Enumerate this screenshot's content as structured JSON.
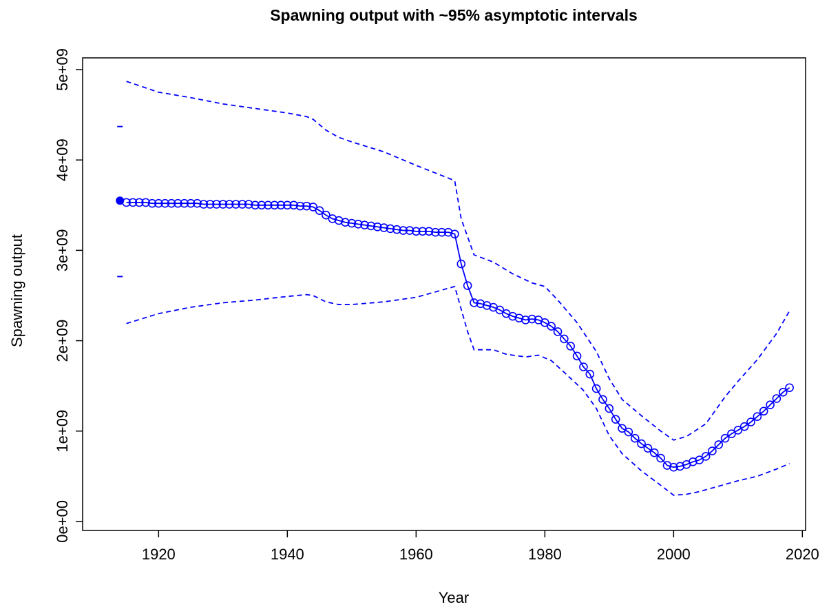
{
  "chart_data": {
    "type": "line",
    "title": "Spawning output with ~95% asymptotic intervals",
    "x_label": "Year",
    "y_label": "Spawning output",
    "xlim": [
      1908.2,
      2020.5
    ],
    "ylim": [
      -100000000.0,
      5130000000.0
    ],
    "xticks": [
      1920,
      1940,
      1960,
      1980,
      2000,
      2020
    ],
    "yticks": [
      {
        "value": 0,
        "label": "0e+00"
      },
      {
        "value": 1000000000.0,
        "label": "1e+09"
      },
      {
        "value": 2000000000.0,
        "label": "2e+09"
      },
      {
        "value": 3000000000.0,
        "label": "3e+09"
      },
      {
        "value": 4000000000.0,
        "label": "4e+09"
      },
      {
        "value": 5000000000.0,
        "label": "5e+09"
      }
    ],
    "series": [
      {
        "color": "#0000ff",
        "marker": "circle",
        "dashed": false,
        "x": [
          1915,
          1916,
          1917,
          1918,
          1919,
          1920,
          1921,
          1922,
          1923,
          1924,
          1925,
          1926,
          1927,
          1928,
          1929,
          1930,
          1931,
          1932,
          1933,
          1934,
          1935,
          1936,
          1937,
          1938,
          1939,
          1940,
          1941,
          1942,
          1943,
          1944,
          1945,
          1946,
          1947,
          1948,
          1949,
          1950,
          1951,
          1952,
          1953,
          1954,
          1955,
          1956,
          1957,
          1958,
          1959,
          1960,
          1961,
          1962,
          1963,
          1964,
          1965,
          1966,
          1967,
          1968,
          1969,
          1970,
          1971,
          1972,
          1973,
          1974,
          1975,
          1976,
          1977,
          1978,
          1979,
          1980,
          1981,
          1982,
          1983,
          1984,
          1985,
          1986,
          1987,
          1988,
          1989,
          1990,
          1991,
          1992,
          1993,
          1994,
          1995,
          1996,
          1997,
          1998,
          1999,
          2000,
          2001,
          2002,
          2003,
          2004,
          2005,
          2006,
          2007,
          2008,
          2009,
          2010,
          2011,
          2012,
          2013,
          2014,
          2015,
          2016,
          2017,
          2018
        ],
        "values": [
          3530000000.0,
          3530000000.0,
          3530000000.0,
          3530000000.0,
          3520000000.0,
          3520000000.0,
          3520000000.0,
          3520000000.0,
          3520000000.0,
          3520000000.0,
          3520000000.0,
          3520000000.0,
          3510000000.0,
          3510000000.0,
          3510000000.0,
          3510000000.0,
          3510000000.0,
          3510000000.0,
          3510000000.0,
          3510000000.0,
          3500000000.0,
          3500000000.0,
          3500000000.0,
          3500000000.0,
          3500000000.0,
          3500000000.0,
          3500000000.0,
          3490000000.0,
          3490000000.0,
          3480000000.0,
          3440000000.0,
          3390000000.0,
          3350000000.0,
          3330000000.0,
          3310000000.0,
          3300000000.0,
          3290000000.0,
          3280000000.0,
          3270000000.0,
          3260000000.0,
          3250000000.0,
          3240000000.0,
          3230000000.0,
          3220000000.0,
          3220000000.0,
          3210000000.0,
          3210000000.0,
          3210000000.0,
          3200000000.0,
          3200000000.0,
          3200000000.0,
          3180000000.0,
          2850000000.0,
          2610000000.0,
          2420000000.0,
          2410000000.0,
          2390000000.0,
          2370000000.0,
          2340000000.0,
          2300000000.0,
          2270000000.0,
          2250000000.0,
          2230000000.0,
          2240000000.0,
          2230000000.0,
          2200000000.0,
          2160000000.0,
          2100000000.0,
          2020000000.0,
          1940000000.0,
          1830000000.0,
          1710000000.0,
          1630000000.0,
          1470000000.0,
          1350000000.0,
          1250000000.0,
          1130000000.0,
          1030000000.0,
          990000000.0,
          920000000.0,
          860000000.0,
          810000000.0,
          760000000.0,
          700000000.0,
          620000000.0,
          600000000.0,
          610000000.0,
          630000000.0,
          660000000.0,
          680000000.0,
          720000000.0,
          780000000.0,
          850000000.0,
          920000000.0,
          970000000.0,
          1010000000.0,
          1050000000.0,
          1100000000.0,
          1160000000.0,
          1220000000.0,
          1290000000.0,
          1360000000.0,
          1430000000.0,
          1480000000.0
        ]
      },
      {
        "color": "#0000ff",
        "marker": "none",
        "dashed": true,
        "x": [
          1915,
          1920,
          1925,
          1930,
          1935,
          1940,
          1943,
          1944,
          1946,
          1948,
          1950,
          1955,
          1960,
          1965,
          1966,
          1967,
          1968,
          1969,
          1972,
          1975,
          1978,
          1980,
          1982,
          1985,
          1988,
          1990,
          1992,
          1995,
          1998,
          2000,
          2002,
          2005,
          2008,
          2010,
          2013,
          2016,
          2018
        ],
        "values": [
          4870000000.0,
          4750000000.0,
          4690000000.0,
          4620000000.0,
          4570000000.0,
          4520000000.0,
          4480000000.0,
          4450000000.0,
          4330000000.0,
          4250000000.0,
          4200000000.0,
          4090000000.0,
          3940000000.0,
          3800000000.0,
          3770000000.0,
          3350000000.0,
          3150000000.0,
          2950000000.0,
          2870000000.0,
          2740000000.0,
          2640000000.0,
          2600000000.0,
          2450000000.0,
          2200000000.0,
          1880000000.0,
          1580000000.0,
          1350000000.0,
          1170000000.0,
          1000000000.0,
          900000000.0,
          940000000.0,
          1080000000.0,
          1380000000.0,
          1550000000.0,
          1790000000.0,
          2080000000.0,
          2330000000.0
        ]
      },
      {
        "color": "#0000ff",
        "marker": "none",
        "dashed": true,
        "x": [
          1915,
          1920,
          1925,
          1930,
          1935,
          1940,
          1943,
          1944,
          1946,
          1948,
          1950,
          1955,
          1960,
          1965,
          1966,
          1967,
          1968,
          1969,
          1972,
          1974,
          1977,
          1979,
          1981,
          1983,
          1986,
          1988,
          1990,
          1992,
          1995,
          1998,
          2000,
          2002,
          2004,
          2007,
          2010,
          2013,
          2016,
          2018
        ],
        "values": [
          2190000000.0,
          2300000000.0,
          2370000000.0,
          2420000000.0,
          2450000000.0,
          2490000000.0,
          2510000000.0,
          2500000000.0,
          2430000000.0,
          2400000000.0,
          2400000000.0,
          2430000000.0,
          2480000000.0,
          2580000000.0,
          2600000000.0,
          2350000000.0,
          2100000000.0,
          1900000000.0,
          1900000000.0,
          1850000000.0,
          1820000000.0,
          1840000000.0,
          1780000000.0,
          1650000000.0,
          1450000000.0,
          1250000000.0,
          950000000.0,
          750000000.0,
          560000000.0,
          400000000.0,
          290000000.0,
          300000000.0,
          330000000.0,
          390000000.0,
          450000000.0,
          500000000.0,
          580000000.0,
          640000000.0
        ]
      },
      {
        "color": "#0000ff",
        "marker": "filled",
        "dashed": false,
        "x": [
          1914
        ],
        "values": [
          3550000000.0
        ]
      },
      {
        "color": "#0000ff",
        "marker": "dash",
        "dashed": false,
        "x": [
          1914,
          1914
        ],
        "values": [
          4370000000.0,
          2710000000.0
        ]
      }
    ]
  }
}
